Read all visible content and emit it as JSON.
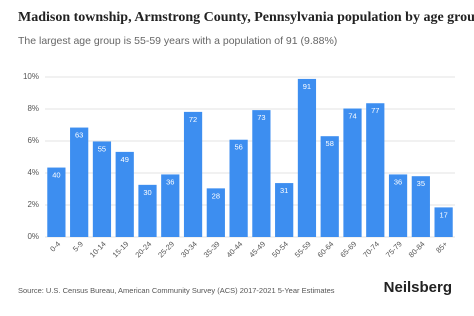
{
  "chart_data": {
    "type": "bar",
    "title": "Madison township, Armstrong County, Pennsylvania population by age grou",
    "subtitle": "The largest age group is 55-59 years with a population of 91 (9.88%)",
    "categories": [
      "0-4",
      "5-9",
      "10-14",
      "15-19",
      "20-24",
      "25-29",
      "30-34",
      "35-39",
      "40-44",
      "45-49",
      "50-54",
      "55-59",
      "60-64",
      "65-69",
      "70-74",
      "75-79",
      "80-84",
      "85+"
    ],
    "values": [
      4.34,
      6.84,
      5.97,
      5.32,
      3.26,
      3.91,
      7.82,
      3.04,
      6.08,
      7.93,
      3.37,
      9.88,
      6.3,
      8.03,
      8.36,
      3.91,
      3.8,
      1.85
    ],
    "population": [
      40,
      63,
      55,
      49,
      30,
      36,
      72,
      28,
      56,
      73,
      31,
      91,
      58,
      74,
      77,
      36,
      35,
      17
    ],
    "color": "#3d8ef0",
    "ylim": [
      0,
      10
    ],
    "yticks": [
      {
        "value": 0,
        "label": "0%"
      },
      {
        "value": 2,
        "label": "2%"
      },
      {
        "value": 4,
        "label": "4%"
      },
      {
        "value": 6,
        "label": "6%"
      },
      {
        "value": 8,
        "label": "8%"
      },
      {
        "value": 10,
        "label": "10%"
      }
    ],
    "grid": true,
    "source": "Source: U.S. Census Bureau, American Community Survey (ACS) 2017-2021 5-Year Estimates",
    "brand": "Neilsberg"
  }
}
